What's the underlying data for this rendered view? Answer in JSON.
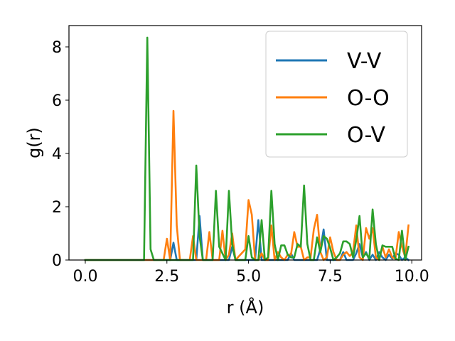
{
  "chart_data": {
    "type": "line",
    "title": "",
    "xlabel": "r (Å)",
    "ylabel": "g(r)",
    "xlim": [
      -0.5,
      10.3
    ],
    "ylim": [
      0,
      8.8
    ],
    "x_ticks": [
      0.0,
      2.5,
      5.0,
      7.5,
      10.0
    ],
    "x_tick_labels": [
      "0.0",
      "2.5",
      "5.0",
      "7.5",
      "10.0"
    ],
    "y_ticks": [
      0,
      2,
      4,
      6,
      8
    ],
    "y_tick_labels": [
      "0",
      "2",
      "4",
      "6",
      "8"
    ],
    "legend_position": "top-right",
    "grid": false,
    "series": [
      {
        "name": "V-V",
        "color": "#1f77b4",
        "x": [
          0,
          2.6,
          2.7,
          2.8,
          2.9,
          3.4,
          3.5,
          3.6,
          4.4,
          4.5,
          4.6,
          5.2,
          5.3,
          5.4,
          6.2,
          6.3,
          6.4,
          7.1,
          7.2,
          7.3,
          7.4,
          7.8,
          7.9,
          8.0,
          8.2,
          8.3,
          8.4,
          8.5,
          8.6,
          8.7,
          8.8,
          8.9,
          9.0,
          9.1,
          9.2,
          9.3,
          9.4,
          9.5,
          9.6,
          9.7,
          9.8,
          9.9
        ],
        "y": [
          0,
          0,
          0.65,
          0,
          0,
          0,
          1.65,
          0,
          0,
          0.5,
          0,
          0,
          1.5,
          0,
          0,
          0.25,
          0,
          0,
          0.4,
          1.15,
          0,
          0,
          0.3,
          0,
          0,
          0.25,
          0.6,
          0.1,
          0.3,
          0,
          0.2,
          0,
          0.3,
          0.1,
          0,
          0.2,
          0.05,
          0.25,
          0.2,
          0,
          0.1,
          0
        ]
      },
      {
        "name": "O-O",
        "color": "#ff7f0e",
        "x": [
          0,
          2.3,
          2.4,
          2.5,
          2.6,
          2.7,
          2.8,
          2.9,
          3.2,
          3.3,
          3.4,
          3.6,
          3.7,
          3.8,
          3.9,
          4.1,
          4.2,
          4.3,
          4.4,
          4.5,
          4.6,
          4.9,
          5.0,
          5.1,
          5.2,
          5.3,
          5.4,
          5.5,
          5.6,
          5.7,
          5.8,
          5.9,
          6.0,
          6.1,
          6.2,
          6.3,
          6.4,
          6.5,
          6.6,
          6.7,
          6.8,
          6.9,
          7.0,
          7.1,
          7.2,
          7.3,
          7.4,
          7.5,
          7.6,
          7.7,
          7.8,
          7.9,
          8.0,
          8.1,
          8.2,
          8.3,
          8.4,
          8.5,
          8.6,
          8.7,
          8.8,
          8.9,
          9.0,
          9.1,
          9.2,
          9.3,
          9.4,
          9.5,
          9.6,
          9.7,
          9.8,
          9.9
        ],
        "y": [
          0,
          0,
          0,
          0.8,
          0,
          5.6,
          1.3,
          0,
          0,
          0.9,
          0,
          0,
          0,
          1.05,
          0,
          0,
          1.1,
          0,
          0.2,
          1.0,
          0,
          0.4,
          2.25,
          1.7,
          0,
          0,
          0.25,
          0,
          0,
          1.3,
          0,
          0.3,
          0.1,
          0,
          0.2,
          0.2,
          1.05,
          0.5,
          0.5,
          0,
          0.1,
          0.1,
          1.15,
          1.7,
          0.3,
          0,
          0.1,
          0.85,
          0.3,
          0,
          0,
          0.2,
          0.3,
          0.15,
          0.3,
          1.3,
          0.1,
          0,
          1.2,
          0.8,
          1.2,
          0.1,
          0,
          0.5,
          0.1,
          0.4,
          0.1,
          0.05,
          1.05,
          0.5,
          0.1,
          1.3
        ]
      },
      {
        "name": "O-V",
        "color": "#2ca02c",
        "x": [
          0,
          1.8,
          1.9,
          2.0,
          2.1,
          3.3,
          3.4,
          3.5,
          3.6,
          3.9,
          4.0,
          4.1,
          4.3,
          4.4,
          4.5,
          4.6,
          4.7,
          4.9,
          5.0,
          5.1,
          5.2,
          5.3,
          5.4,
          5.5,
          5.6,
          5.7,
          5.8,
          5.9,
          6.0,
          6.1,
          6.2,
          6.3,
          6.4,
          6.5,
          6.6,
          6.7,
          6.8,
          6.9,
          7.0,
          7.1,
          7.2,
          7.3,
          7.4,
          7.5,
          7.6,
          7.7,
          7.8,
          7.9,
          8.0,
          8.1,
          8.2,
          8.3,
          8.4,
          8.5,
          8.6,
          8.7,
          8.8,
          8.9,
          9.0,
          9.1,
          9.2,
          9.3,
          9.4,
          9.5,
          9.6,
          9.7,
          9.8,
          9.9
        ],
        "y": [
          0,
          0,
          8.35,
          0.4,
          0,
          0,
          3.55,
          0.9,
          0,
          0,
          2.6,
          0.5,
          0,
          2.6,
          0.6,
          0,
          0,
          0,
          0.9,
          0.1,
          0,
          0,
          1.5,
          0,
          0.1,
          2.6,
          0.6,
          0,
          0.55,
          0.55,
          0.2,
          0.1,
          0.1,
          0.6,
          0.5,
          2.8,
          0.6,
          0,
          0,
          0.85,
          0.3,
          0.9,
          0.8,
          0.45,
          0,
          0.1,
          0.25,
          0.7,
          0.7,
          0.6,
          0.1,
          0.75,
          1.65,
          0.1,
          0.25,
          0.05,
          1.9,
          0.6,
          0,
          0.55,
          0.5,
          0.5,
          0.5,
          0.05,
          0,
          1.1,
          0,
          0.5
        ]
      }
    ]
  }
}
